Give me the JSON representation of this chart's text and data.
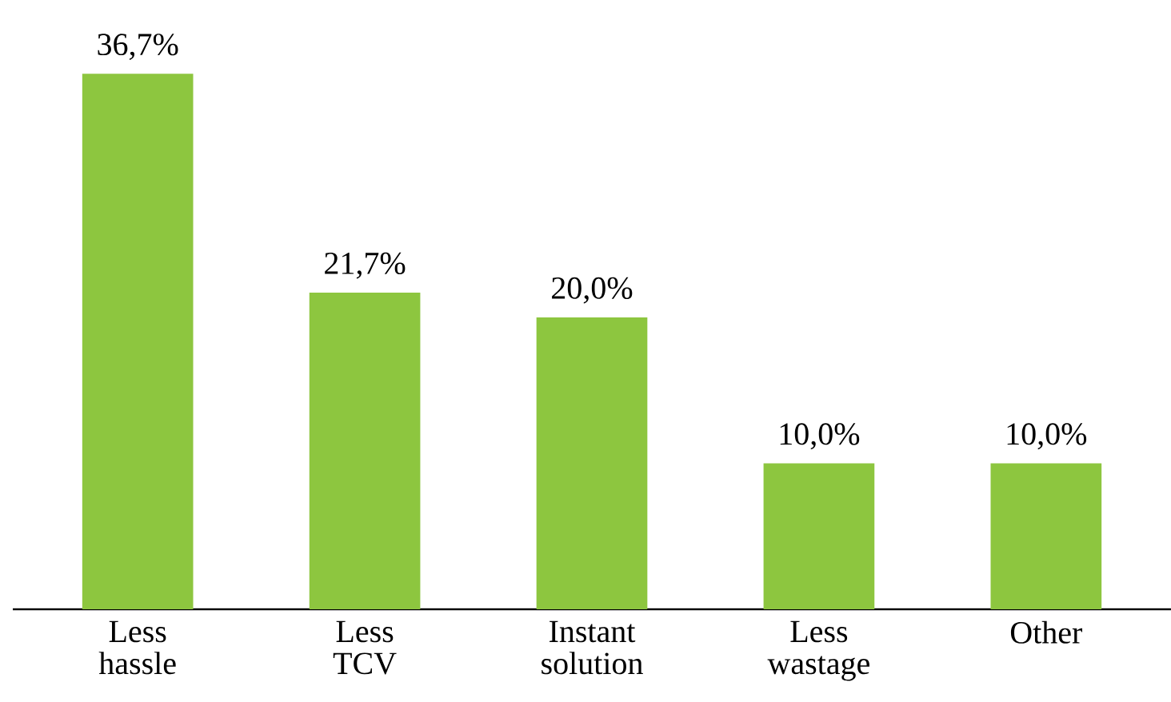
{
  "chart_data": {
    "type": "bar",
    "categories": [
      "Less hassle",
      "Less TCV",
      "Instant solution",
      "Less wastage",
      "Other"
    ],
    "values": [
      36.7,
      21.7,
      20.0,
      10.0,
      10.0
    ],
    "value_labels": [
      "36,7%",
      "21,7%",
      "20,0%",
      "10,0%",
      "10,0%"
    ],
    "color": "#8dc63f"
  }
}
